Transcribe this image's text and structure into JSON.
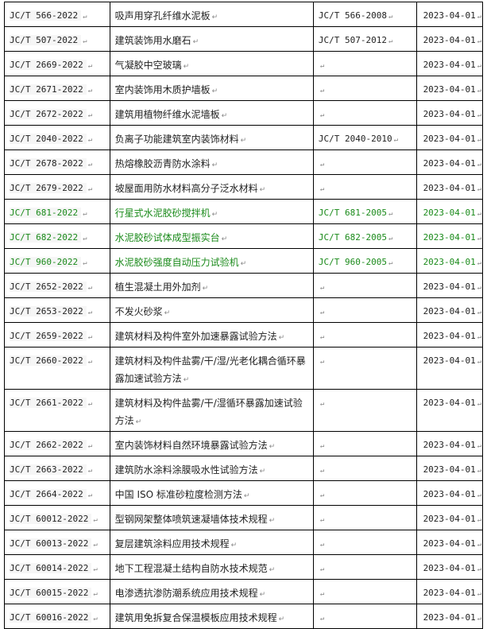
{
  "return_mark": "↵",
  "colors": {
    "highlight_text": "#1a8a1a"
  },
  "rows": [
    {
      "code": "JC/T 566-2022",
      "name": "吸声用穿孔纤维水泥板",
      "replaced": "JC/T 566-2008",
      "date": "2023-04-01",
      "highlight": false
    },
    {
      "code": "JC/T 507-2022",
      "name": "建筑装饰用水磨石",
      "replaced": "JC/T 507-2012",
      "date": "2023-04-01",
      "highlight": false
    },
    {
      "code": "JC/T 2669-2022",
      "name": "气凝胶中空玻璃",
      "replaced": "",
      "date": "2023-04-01",
      "highlight": false
    },
    {
      "code": "JC/T 2671-2022",
      "name": "室内装饰用木质护墙板",
      "replaced": "",
      "date": "2023-04-01",
      "highlight": false
    },
    {
      "code": "JC/T 2672-2022",
      "name": "建筑用植物纤维水泥墙板",
      "replaced": "",
      "date": "2023-04-01",
      "highlight": false
    },
    {
      "code": "JC/T 2040-2022",
      "name": "负离子功能建筑室内装饰材料",
      "replaced": "JC/T 2040-2010",
      "date": "2023-04-01",
      "highlight": false
    },
    {
      "code": "JC/T 2678-2022",
      "name": "热熔橡胶沥青防水涂料",
      "replaced": "",
      "date": "2023-04-01",
      "highlight": false
    },
    {
      "code": "JC/T 2679-2022",
      "name": "坡屋面用防水材料高分子泛水材料",
      "replaced": "",
      "date": "2023-04-01",
      "highlight": false
    },
    {
      "code": "JC/T 681-2022",
      "name": "行星式水泥胶砂搅拌机",
      "replaced": "JC/T 681-2005",
      "date": "2023-04-01",
      "highlight": true
    },
    {
      "code": "JC/T 682-2022",
      "name": "水泥胶砂试体成型振实台",
      "replaced": "JC/T 682-2005",
      "date": "2023-04-01",
      "highlight": true
    },
    {
      "code": "JC/T 960-2022",
      "name": "水泥胶砂强度自动压力试验机",
      "replaced": "JC/T 960-2005",
      "date": "2023-04-01",
      "highlight": true
    },
    {
      "code": "JC/T 2652-2022",
      "name": "植生混凝土用外加剂",
      "replaced": "",
      "date": "2023-04-01",
      "highlight": false
    },
    {
      "code": "JC/T 2653-2022",
      "name": "不发火砂浆",
      "replaced": "",
      "date": "2023-04-01",
      "highlight": false
    },
    {
      "code": "JC/T 2659-2022",
      "name": "建筑材料及构件室外加速暴露试验方法",
      "replaced": "",
      "date": "2023-04-01",
      "highlight": false
    },
    {
      "code": "JC/T 2660-2022",
      "name": "建筑材料及构件盐雾/干/湿/光老化耦合循环暴露加速试验方法",
      "replaced": "",
      "date": "2023-04-01",
      "highlight": false,
      "tall": true
    },
    {
      "code": "JC/T 2661-2022",
      "name": "建筑材料及构件盐雾/干/湿循环暴露加速试验方法",
      "replaced": "",
      "date": "2023-04-01",
      "highlight": false,
      "tall": true
    },
    {
      "code": "JC/T 2662-2022",
      "name": "室内装饰材料自然环境暴露试验方法",
      "replaced": "",
      "date": "2023-04-01",
      "highlight": false
    },
    {
      "code": "JC/T 2663-2022",
      "name": "建筑防水涂料涂膜吸水性试验方法",
      "replaced": "",
      "date": "2023-04-01",
      "highlight": false
    },
    {
      "code": "JC/T 2664-2022",
      "name": "中国 ISO 标准砂粒度检测方法",
      "replaced": "",
      "date": "2023-04-01",
      "highlight": false
    },
    {
      "code": "JC/T 60012-2022",
      "name": "型钢网架整体喷筑速凝墙体技术规程",
      "replaced": "",
      "date": "2023-04-01",
      "highlight": false
    },
    {
      "code": "JC/T 60013-2022",
      "name": "复层建筑涂料应用技术规程",
      "replaced": "",
      "date": "2023-04-01",
      "highlight": false
    },
    {
      "code": "JC/T 60014-2022",
      "name": "地下工程混凝土结构自防水技术规范",
      "replaced": "",
      "date": "2023-04-01",
      "highlight": false
    },
    {
      "code": "JC/T 60015-2022",
      "name": "电渗透抗渗防潮系统应用技术规程",
      "replaced": "",
      "date": "2023-04-01",
      "highlight": false
    },
    {
      "code": "JC/T 60016-2022",
      "name": "建筑用免拆复合保温模板应用技术规程",
      "replaced": "",
      "date": "2023-04-01",
      "highlight": false
    }
  ]
}
